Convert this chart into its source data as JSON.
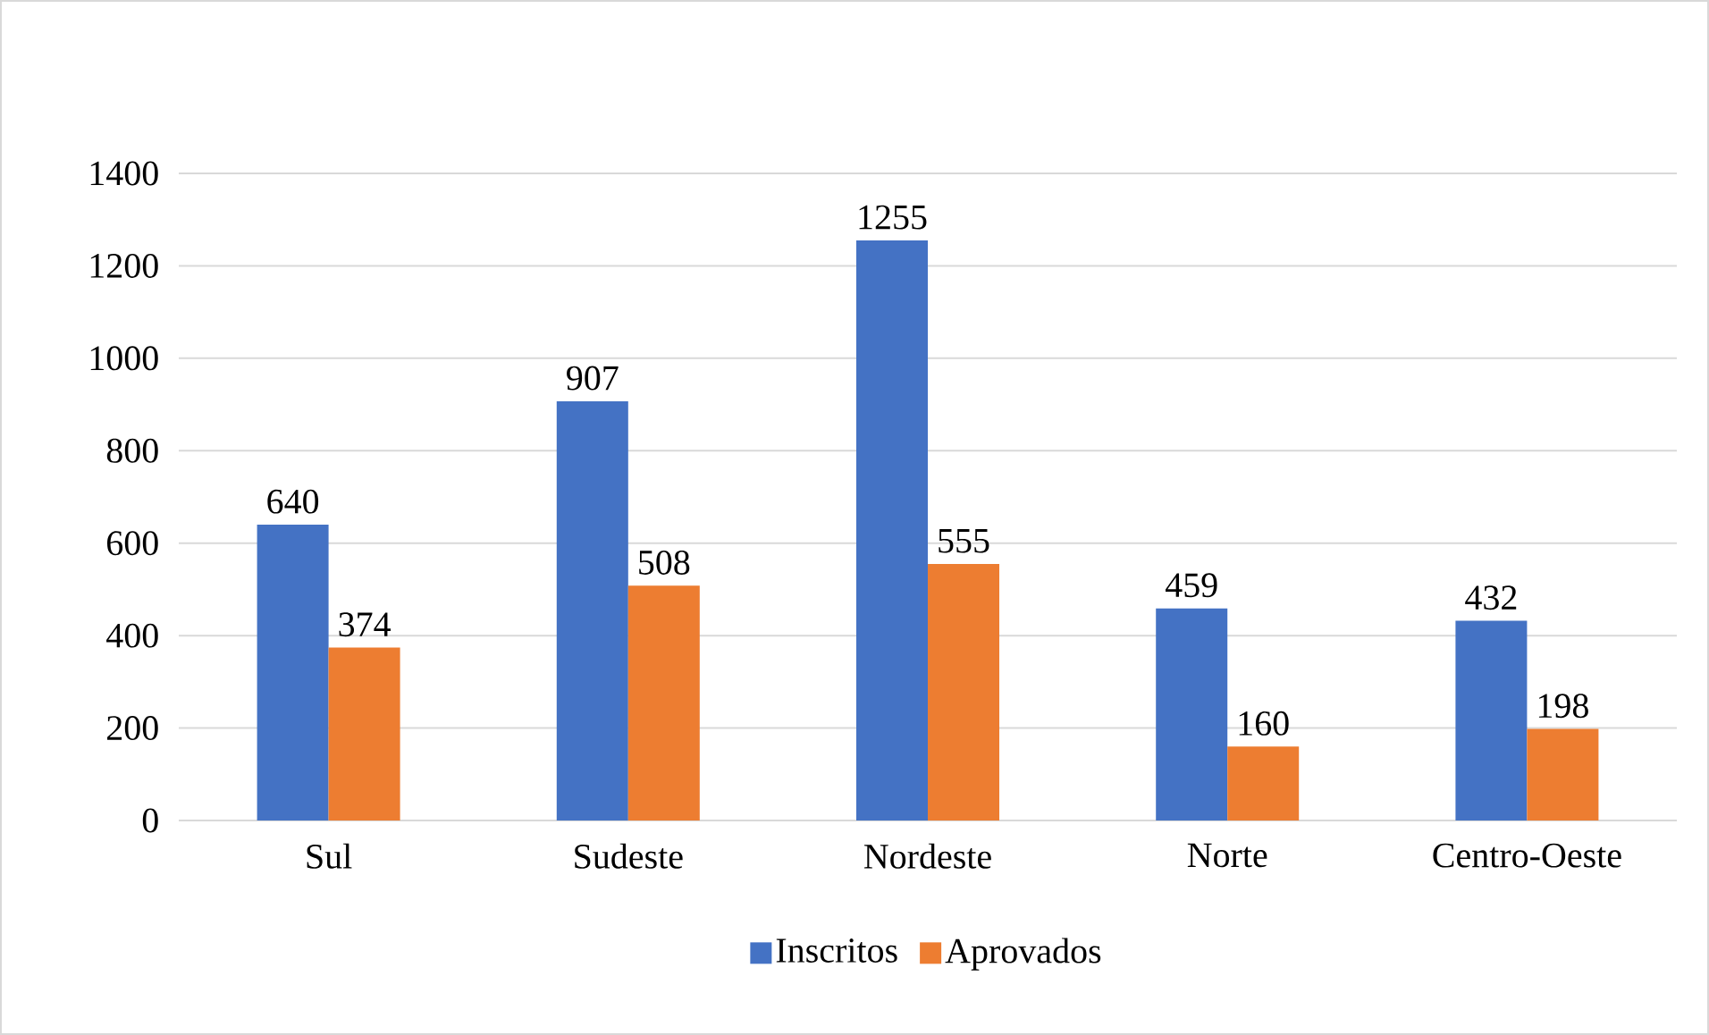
{
  "chart_data": {
    "type": "bar",
    "categories": [
      "Sul",
      "Sudeste",
      "Nordeste",
      "Norte",
      "Centro-Oeste"
    ],
    "series": [
      {
        "name": "Inscritos",
        "color": "#4472c4",
        "values": [
          640,
          907,
          1255,
          459,
          432
        ]
      },
      {
        "name": "Aprovados",
        "color": "#ed7d31",
        "values": [
          374,
          508,
          555,
          160,
          198
        ]
      }
    ],
    "ylim": [
      0,
      1400
    ],
    "yticks": [
      0,
      200,
      400,
      600,
      800,
      1000,
      1200,
      1400
    ],
    "grid": "y",
    "legend": "bottom",
    "data_labels": true
  }
}
